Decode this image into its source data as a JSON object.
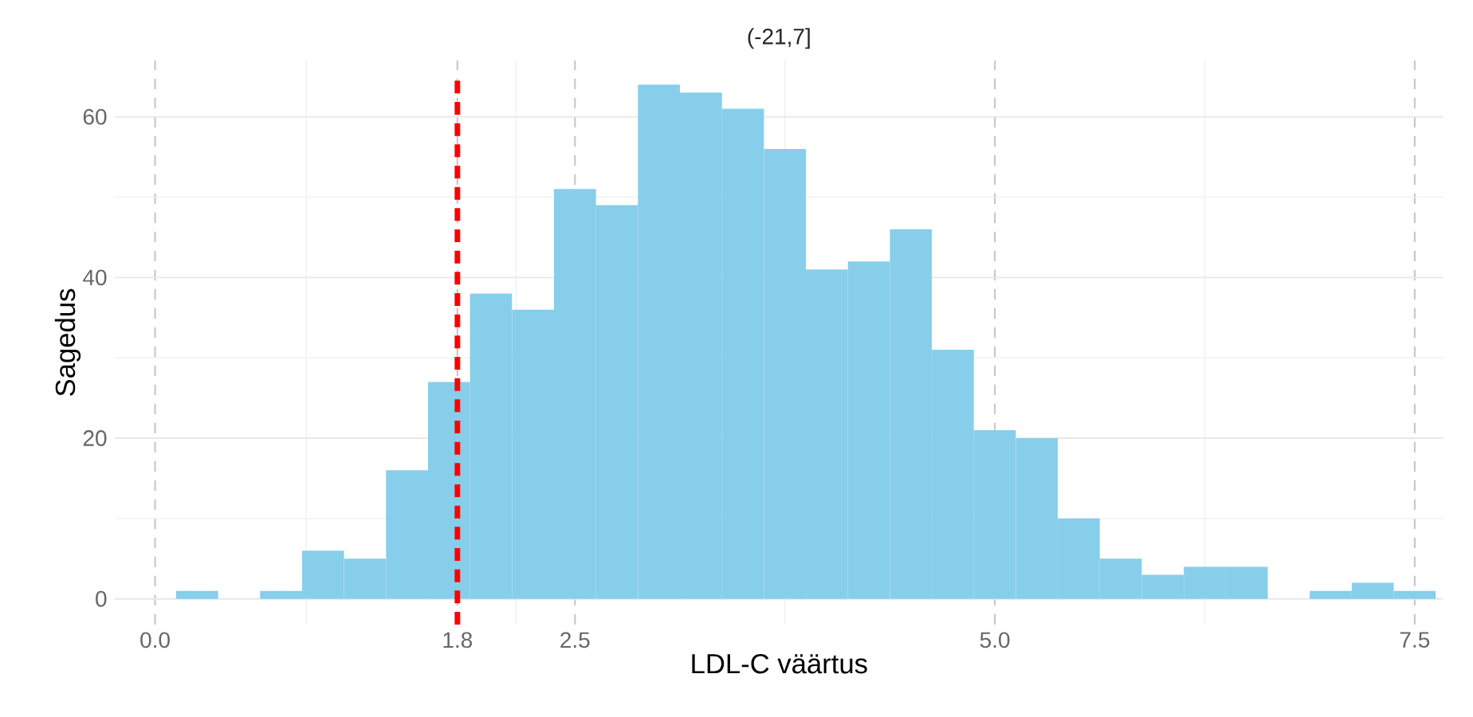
{
  "chart_data": {
    "type": "histogram",
    "title": "(-21,7]",
    "xlabel": "LDL-C väärtus",
    "ylabel": "Sagedus",
    "color": "#87ceeb",
    "bins": [
      0.125,
      0.375,
      0.625,
      0.875,
      1.125,
      1.375,
      1.625,
      1.875,
      2.125,
      2.375,
      2.625,
      2.875,
      3.125,
      3.375,
      3.625,
      3.875,
      4.125,
      4.375,
      4.625,
      4.875,
      5.125,
      5.375,
      5.625,
      5.875,
      6.125,
      6.375,
      6.625,
      6.875,
      7.125,
      7.375,
      7.625
    ],
    "values": [
      1,
      0,
      1,
      6,
      5,
      16,
      27,
      38,
      36,
      51,
      49,
      64,
      63,
      61,
      56,
      41,
      42,
      46,
      31,
      21,
      20,
      10,
      5,
      3,
      4,
      4,
      0,
      1,
      2,
      1
    ],
    "xlim": [
      -0.24,
      7.67
    ],
    "ylim": [
      -3.2,
      67
    ],
    "xticks": [
      {
        "value": 0,
        "label": "0.0"
      },
      {
        "value": 1.8,
        "label": "1.8"
      },
      {
        "value": 2.5,
        "label": "2.5"
      },
      {
        "value": 5,
        "label": "5.0"
      },
      {
        "value": 7.5,
        "label": "7.5"
      }
    ],
    "yticks": [
      0,
      20,
      40,
      60
    ],
    "grid": true,
    "ref_lines": [
      {
        "axis": "x",
        "value": 1.8,
        "color": "#ff0000",
        "line_style": "dashed"
      }
    ]
  }
}
